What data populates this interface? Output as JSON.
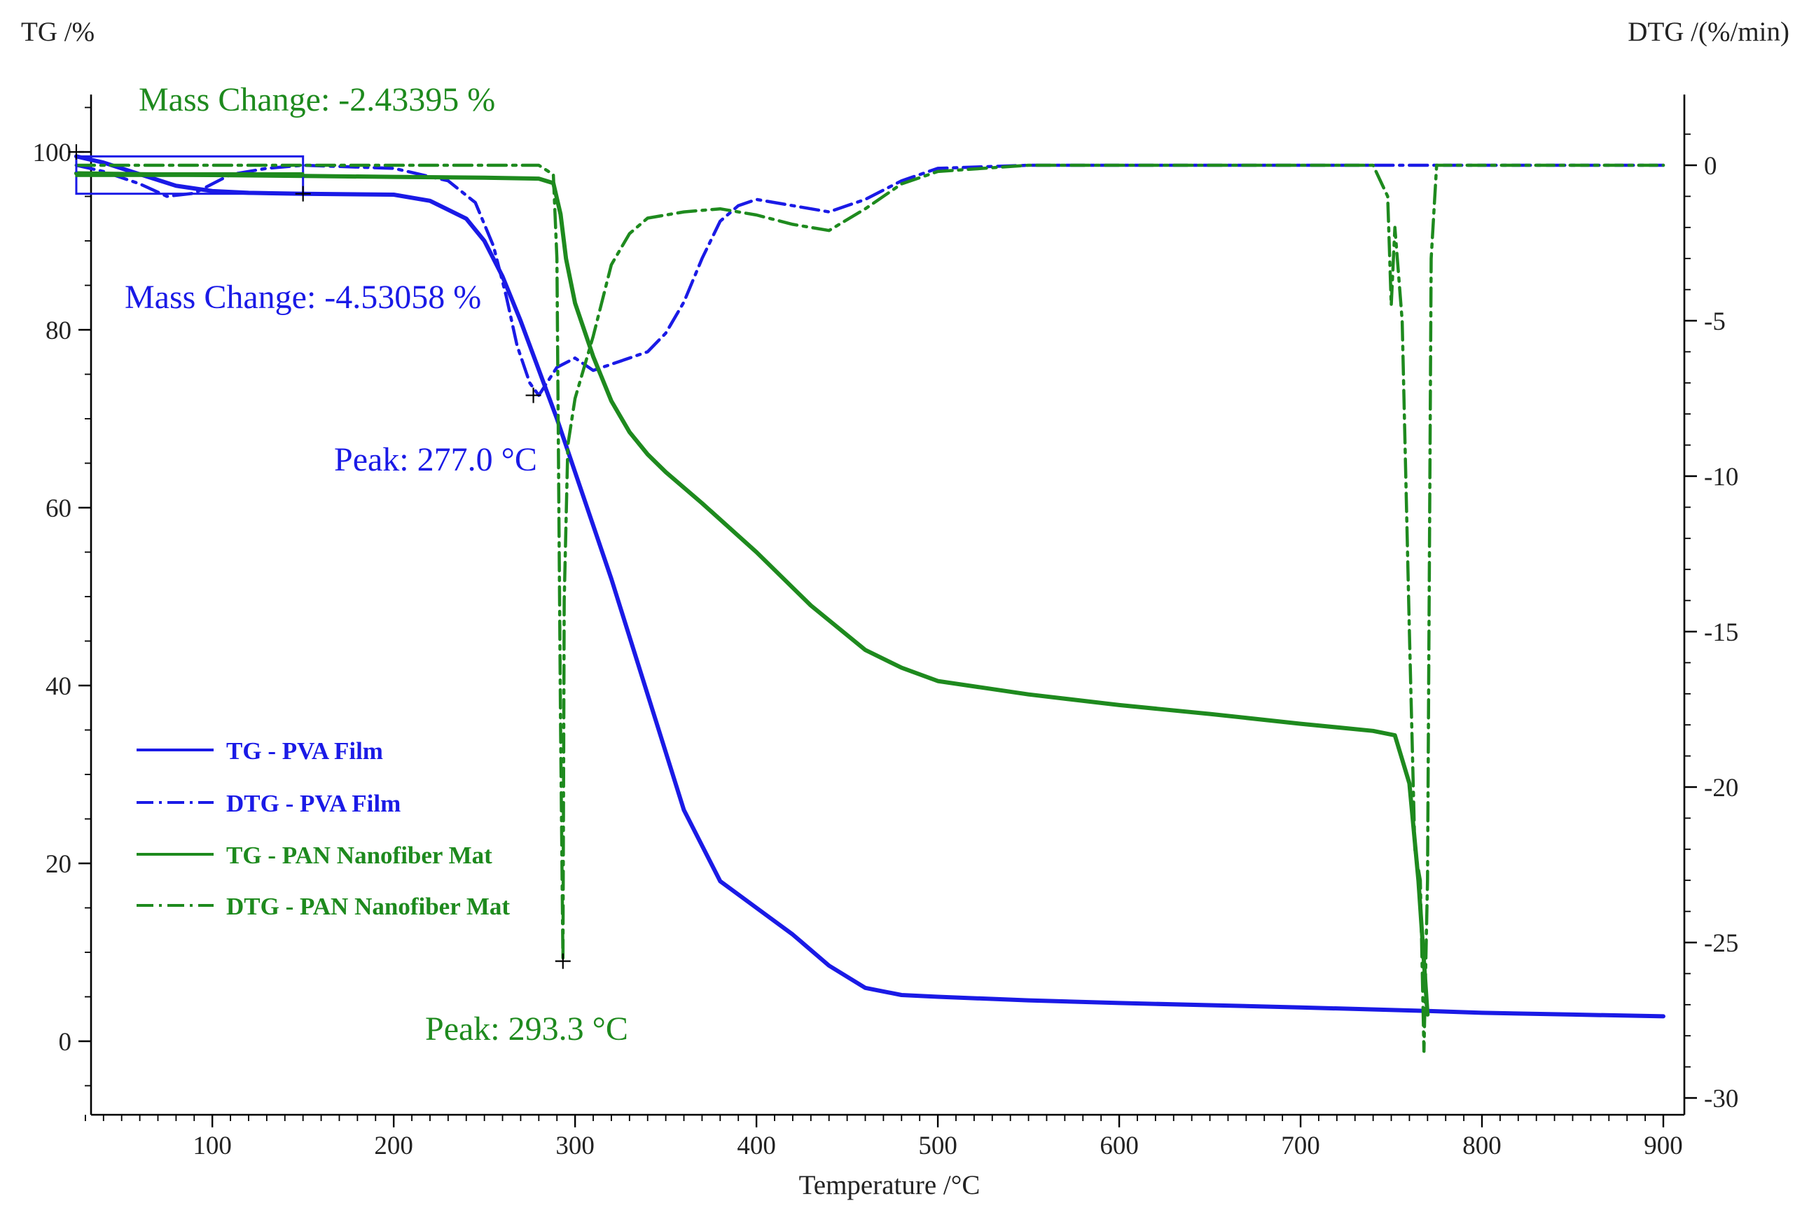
{
  "chart_data": {
    "type": "line",
    "title": "",
    "xlabel": "Temperature /°C",
    "ylabel_left": "TG /%",
    "ylabel_right": "DTG /(%/min)",
    "xlim": [
      20,
      900
    ],
    "ylim_left": [
      -8,
      106
    ],
    "ylim_right": [
      -30,
      2
    ],
    "x_ticks": [
      100,
      200,
      300,
      400,
      500,
      600,
      700,
      800,
      900
    ],
    "y_left_ticks": [
      0,
      20,
      40,
      60,
      80,
      100
    ],
    "y_right_ticks": [
      0,
      -5,
      -10,
      -15,
      -20,
      -25,
      -30
    ],
    "grid": false,
    "legend_position": "lower-left",
    "colors": {
      "pva": "#1a1ae6",
      "pan": "#1e8a1e"
    },
    "series": [
      {
        "name": "TG - PVA Film",
        "axis": "left",
        "color": "#1a1ae6",
        "style": "solid",
        "x": [
          25,
          40,
          60,
          80,
          100,
          120,
          150,
          200,
          220,
          240,
          250,
          260,
          270,
          280,
          290,
          300,
          320,
          340,
          360,
          380,
          400,
          420,
          440,
          460,
          480,
          500,
          550,
          600,
          700,
          770,
          800,
          850,
          900
        ],
        "y": [
          99.5,
          98.8,
          97.5,
          96.2,
          95.6,
          95.4,
          95.3,
          95.2,
          94.5,
          92.5,
          90,
          86,
          81,
          75.5,
          70,
          64,
          52,
          39,
          26,
          18,
          15,
          12,
          8.5,
          6,
          5.2,
          5,
          4.6,
          4.3,
          3.8,
          3.4,
          3.2,
          3,
          2.8
        ]
      },
      {
        "name": "DTG - PVA Film",
        "axis": "right",
        "color": "#1a1ae6",
        "style": "dashdot",
        "x": [
          25,
          40,
          60,
          75,
          90,
          110,
          130,
          150,
          200,
          230,
          245,
          255,
          262,
          268,
          275,
          280,
          290,
          300,
          310,
          320,
          340,
          350,
          360,
          370,
          380,
          390,
          400,
          420,
          440,
          460,
          480,
          500,
          550,
          600,
          700,
          800,
          900
        ],
        "y": [
          0,
          -0.2,
          -0.6,
          -1,
          -0.9,
          -0.3,
          -0.1,
          0,
          -0.1,
          -0.5,
          -1.2,
          -2.6,
          -4.2,
          -5.8,
          -7,
          -7.4,
          -6.5,
          -6.2,
          -6.6,
          -6.4,
          -6,
          -5.4,
          -4.4,
          -3,
          -1.8,
          -1.3,
          -1.1,
          -1.3,
          -1.5,
          -1.1,
          -0.5,
          -0.1,
          0,
          0,
          0,
          0,
          0
        ]
      },
      {
        "name": "TG - PAN Nanofiber Mat",
        "axis": "left",
        "color": "#1e8a1e",
        "style": "solid",
        "x": [
          25,
          60,
          100,
          150,
          200,
          250,
          280,
          288,
          292,
          295,
          300,
          310,
          320,
          330,
          340,
          350,
          370,
          400,
          430,
          460,
          480,
          500,
          550,
          600,
          650,
          700,
          740,
          752,
          760,
          765,
          770
        ],
        "y": [
          97.6,
          97.5,
          97.4,
          97.3,
          97.2,
          97.1,
          97,
          96.5,
          93,
          88,
          83,
          77,
          72,
          68.5,
          66,
          64,
          60.5,
          55,
          49,
          44,
          42,
          40.5,
          39,
          37.8,
          36.8,
          35.7,
          34.9,
          34.4,
          29,
          18,
          3
        ]
      },
      {
        "name": "DTG - PAN Nanofiber Mat",
        "axis": "right",
        "color": "#1e8a1e",
        "style": "dashdot",
        "x": [
          25,
          50,
          100,
          150,
          200,
          250,
          280,
          288,
          290,
          292,
          293.3,
          294,
          296,
          300,
          310,
          320,
          330,
          340,
          360,
          380,
          400,
          420,
          440,
          460,
          480,
          500,
          550,
          600,
          650,
          700,
          740,
          748,
          750,
          752,
          756,
          760,
          763,
          766,
          768,
          770,
          772,
          775,
          780,
          800,
          850,
          900
        ],
        "y": [
          0,
          0,
          0,
          0,
          0,
          0,
          0,
          -0.3,
          -3,
          -18,
          -25.6,
          -14,
          -9,
          -7.5,
          -5.5,
          -3.2,
          -2.2,
          -1.7,
          -1.5,
          -1.4,
          -1.6,
          -1.9,
          -2.1,
          -1.4,
          -0.6,
          -0.2,
          0,
          0,
          0,
          0,
          0,
          -1,
          -4.5,
          -2,
          -5,
          -15,
          -22,
          -23,
          -28.5,
          -23,
          -3,
          0,
          0,
          0,
          0,
          0
        ]
      }
    ],
    "annotations": [
      {
        "text": "Mass Change: -2.43395 %",
        "color": "#1e8a1e"
      },
      {
        "text": "Mass Change: -4.53058 %",
        "color": "#1a1ae6"
      },
      {
        "text": "Peak: 277.0 °C",
        "color": "#1a1ae6"
      },
      {
        "text": "Peak: 293.3 °C",
        "color": "#1e8a1e"
      }
    ]
  }
}
